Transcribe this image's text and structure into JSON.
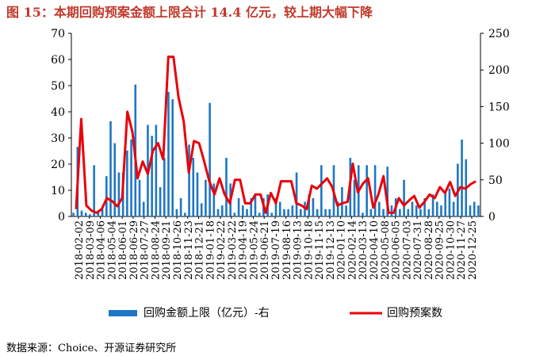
{
  "title": "图 15：本期回购预案金额上限合计 14.4 亿元，较上期大幅下降",
  "source": "数据来源：Choice、开源证券研究所",
  "chart_data": {
    "type": "bar+line",
    "title": "本期回购预案金额上限合计 14.4 亿元，较上期大幅下降",
    "left_axis": {
      "ylim": [
        0,
        70
      ],
      "ticks": [
        "0",
        "10",
        "20",
        "30",
        "40",
        "50",
        "60",
        "70"
      ]
    },
    "right_axis": {
      "ylim": [
        0,
        250
      ],
      "ticks": [
        "0",
        "50",
        "100",
        "150",
        "200",
        "250"
      ]
    },
    "x_tick_labels": [
      "2018-02-02",
      "2018-03-09",
      "2018-04-06",
      "2018-05-04",
      "2018-06-01",
      "2018-06-29",
      "2018-07-27",
      "2018-08-24",
      "2018-09-21",
      "2018-10-26",
      "2018-11-23",
      "2018-12-21",
      "2019-01-18",
      "2019-02-22",
      "2019-03-22",
      "2019-04-19",
      "2019-05-24",
      "2019-06-21",
      "2019-07-19",
      "2019-08-16",
      "2019-09-13",
      "2019-10-18",
      "2019-11-15",
      "2019-12-13",
      "2020-01-10",
      "2020-02-14",
      "2020-03-13",
      "2020-04-10",
      "2020-05-08",
      "2020-06-05",
      "2020-07-03",
      "2020-07-31",
      "2020-08-28",
      "2020-09-25",
      "2020-10-30",
      "2020-11-27",
      "2020-12-25"
    ],
    "series": [
      {
        "name": "回购金额上限（亿元）-右",
        "type": "bar",
        "axis": "right",
        "color": "#1F77C4",
        "values": [
          5,
          95,
          8,
          5,
          3,
          70,
          8,
          10,
          55,
          130,
          100,
          60,
          60,
          90,
          105,
          180,
          50,
          20,
          125,
          110,
          125,
          40,
          80,
          170,
          160,
          10,
          25,
          5,
          98,
          80,
          60,
          18,
          50,
          155,
          45,
          10,
          15,
          80,
          45,
          5,
          25,
          15,
          10,
          25,
          30,
          5,
          25,
          30,
          5,
          25,
          20,
          10,
          10,
          15,
          60,
          10,
          20,
          30,
          25,
          10,
          70,
          10,
          10,
          70,
          20,
          40,
          15,
          80,
          50,
          70,
          5,
          70,
          10,
          70,
          20,
          10,
          68,
          15,
          25,
          10,
          50,
          10,
          20,
          15,
          10,
          25,
          10,
          30,
          20,
          15,
          35,
          38,
          20,
          72,
          105,
          78,
          15,
          20,
          15
        ]
      },
      {
        "name": "回购预案数",
        "type": "line",
        "axis": "right",
        "color": "#E8000B",
        "values": [
          10,
          133,
          15,
          8,
          5,
          10,
          25,
          21,
          14,
          25,
          143,
          115,
          52,
          75,
          58,
          90,
          100,
          78,
          218,
          218,
          162,
          130,
          60,
          103,
          100,
          75,
          48,
          30,
          52,
          30,
          18,
          50,
          50,
          18,
          18,
          30,
          30,
          5,
          32,
          18,
          48,
          48,
          48,
          18,
          15,
          10,
          42,
          38,
          45,
          52,
          40,
          15,
          18,
          20,
          72,
          33,
          45,
          52,
          12,
          30,
          55,
          5,
          5,
          25,
          15,
          22,
          28,
          12,
          20,
          30,
          25,
          40,
          32,
          47,
          28,
          40,
          38,
          44,
          48
        ]
      }
    ],
    "legend": [
      "回购金额上限（亿元）-右",
      "回购预案数"
    ],
    "legend_position": "bottom"
  }
}
